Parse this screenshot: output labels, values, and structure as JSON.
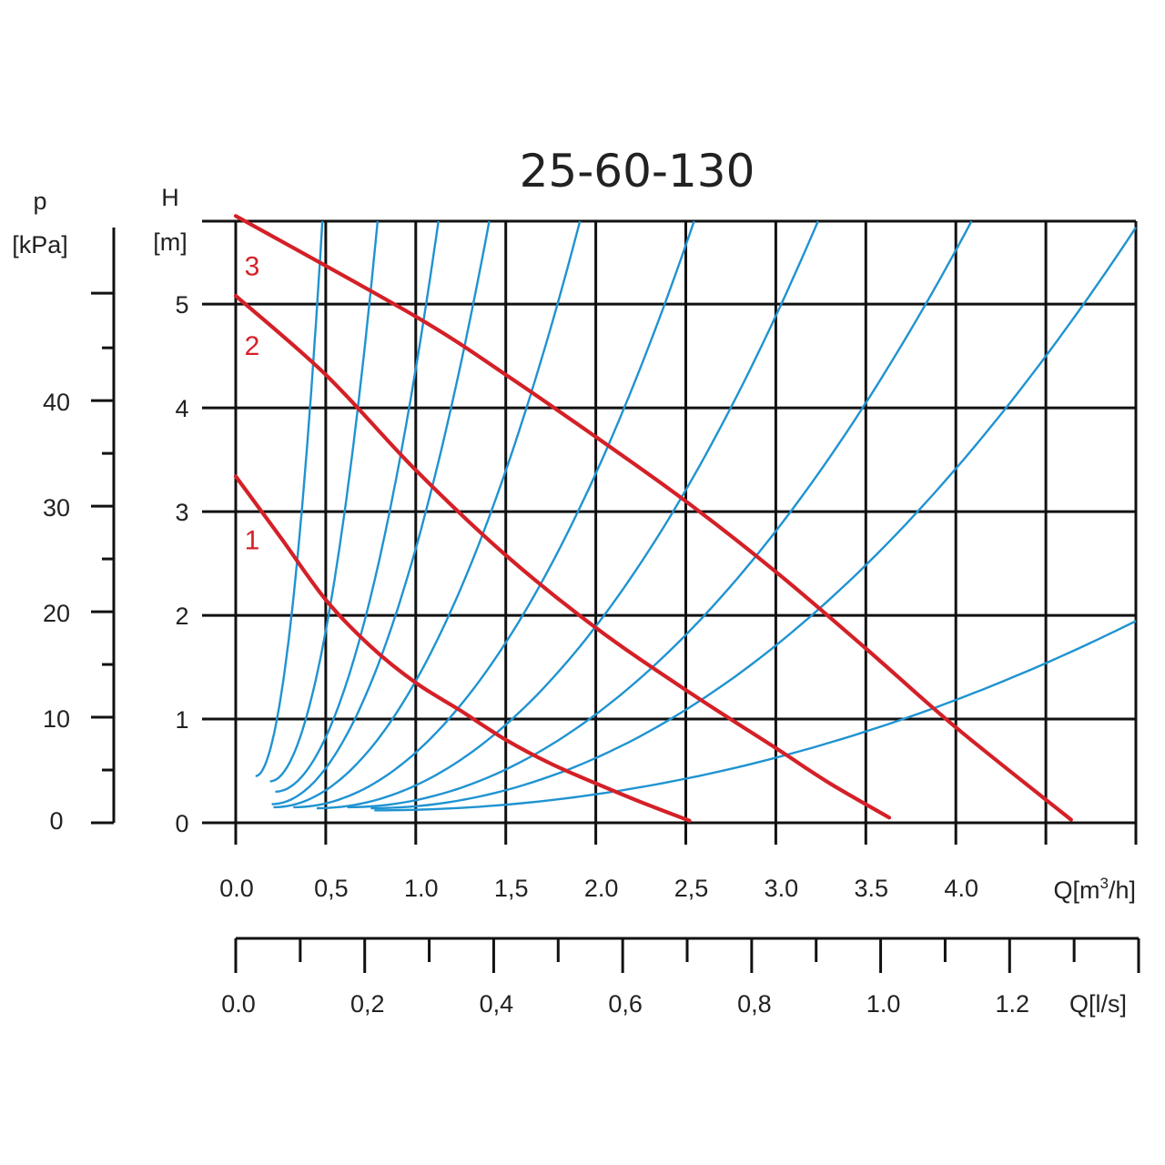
{
  "chart_data": {
    "type": "line",
    "title": "25-60-130",
    "x_axis": {
      "unit_label_prefix": "Q[m",
      "unit_label_sup": "3",
      "unit_label_suffix": "/h]",
      "range": [
        0,
        5
      ],
      "grid_values": [
        0,
        0.5,
        1,
        1.5,
        2,
        2.5,
        3,
        3.5,
        4,
        4.5,
        5
      ],
      "tick_labels": [
        {
          "value": 0,
          "text": "0.0"
        },
        {
          "value": 0.5,
          "text": "0,5"
        },
        {
          "value": 1.0,
          "text": "1.0"
        },
        {
          "value": 1.5,
          "text": "1,5"
        },
        {
          "value": 2.0,
          "text": "2.0"
        },
        {
          "value": 2.5,
          "text": "2,5"
        },
        {
          "value": 3.0,
          "text": "3.0"
        },
        {
          "value": 3.5,
          "text": "3.5"
        },
        {
          "value": 4.0,
          "text": "4.0"
        }
      ]
    },
    "y_axis": {
      "label_top": "H",
      "label_unit": "[m]",
      "range": [
        0,
        5.8
      ],
      "grid_values": [
        0,
        1,
        2,
        3,
        4,
        5,
        5.8
      ],
      "tick_labels": [
        {
          "value": 0,
          "text": "0"
        },
        {
          "value": 1,
          "text": "1"
        },
        {
          "value": 2,
          "text": "2"
        },
        {
          "value": 3,
          "text": "3"
        },
        {
          "value": 4,
          "text": "4"
        },
        {
          "value": 5,
          "text": "5"
        }
      ]
    },
    "pressure_axis": {
      "label_top": "p",
      "label_unit": "[kPa]",
      "range_kpa": [
        0,
        57
      ],
      "major": [
        0,
        10,
        20,
        30,
        40
      ],
      "minor": [
        5,
        15,
        25,
        35,
        45
      ],
      "tick_labels": [
        {
          "value": 0,
          "text": "0"
        },
        {
          "value": 10,
          "text": "10"
        },
        {
          "value": 20,
          "text": "20"
        },
        {
          "value": 30,
          "text": "30"
        },
        {
          "value": 40,
          "text": "40"
        }
      ]
    },
    "flow_ls_axis": {
      "unit_label": "Q[l/s]",
      "range_ls": [
        0,
        1.4
      ],
      "ticks": [
        0,
        0.1,
        0.2,
        0.3,
        0.4,
        0.5,
        0.6,
        0.7,
        0.8,
        0.9,
        1.0,
        1.1,
        1.2,
        1.3,
        1.4
      ],
      "tick_labels": [
        {
          "value": 0,
          "text": "0.0"
        },
        {
          "value": 0.2,
          "text": "0,2"
        },
        {
          "value": 0.4,
          "text": "0,4"
        },
        {
          "value": 0.6,
          "text": "0,6"
        },
        {
          "value": 0.8,
          "text": "0,8"
        },
        {
          "value": 1.0,
          "text": "1.0"
        },
        {
          "value": 1.2,
          "text": "1.2"
        }
      ]
    },
    "pump_curves": [
      {
        "name": "1",
        "color": "#d42027",
        "points": [
          [
            0,
            3.34
          ],
          [
            0.25,
            2.75
          ],
          [
            0.5,
            2.15
          ],
          [
            0.75,
            1.7
          ],
          [
            1.0,
            1.35
          ],
          [
            1.25,
            1.08
          ],
          [
            1.5,
            0.8
          ],
          [
            1.75,
            0.57
          ],
          [
            2.0,
            0.38
          ],
          [
            2.25,
            0.2
          ],
          [
            2.52,
            0.02
          ]
        ]
      },
      {
        "name": "2",
        "color": "#d42027",
        "points": [
          [
            0,
            5.08
          ],
          [
            0.5,
            4.32
          ],
          [
            1.0,
            3.4
          ],
          [
            1.5,
            2.58
          ],
          [
            2.0,
            1.88
          ],
          [
            2.5,
            1.28
          ],
          [
            3.0,
            0.72
          ],
          [
            3.3,
            0.38
          ],
          [
            3.63,
            0.05
          ]
        ]
      },
      {
        "name": "3",
        "color": "#d42027",
        "points": [
          [
            0,
            5.85
          ],
          [
            1.0,
            4.88
          ],
          [
            1.5,
            4.32
          ],
          [
            2.0,
            3.72
          ],
          [
            2.5,
            3.1
          ],
          [
            3.0,
            2.42
          ],
          [
            3.5,
            1.68
          ],
          [
            4.0,
            0.92
          ],
          [
            4.64,
            0.03
          ]
        ]
      }
    ],
    "system_curves": {
      "color": "#1f93d1",
      "curves": [
        {
          "x0": 0.11,
          "h0": 0.45,
          "k": 38.8
        },
        {
          "x0": 0.19,
          "h0": 0.4,
          "k": 15.1
        },
        {
          "x0": 0.22,
          "h0": 0.3,
          "k": 6.7
        },
        {
          "x0": 0.2,
          "h0": 0.18,
          "k": 3.85
        },
        {
          "x0": 0.21,
          "h0": 0.15,
          "k": 1.95
        },
        {
          "x0": 0.32,
          "h0": 0.15,
          "k": 1.14
        },
        {
          "x0": 0.45,
          "h0": 0.14,
          "k": 0.73
        },
        {
          "x0": 0.62,
          "h0": 0.15,
          "k": 0.47
        },
        {
          "x0": 0.75,
          "h0": 0.14,
          "k": 0.31
        },
        {
          "x0": 0.77,
          "h0": 0.12,
          "k": 0.102
        }
      ]
    }
  }
}
